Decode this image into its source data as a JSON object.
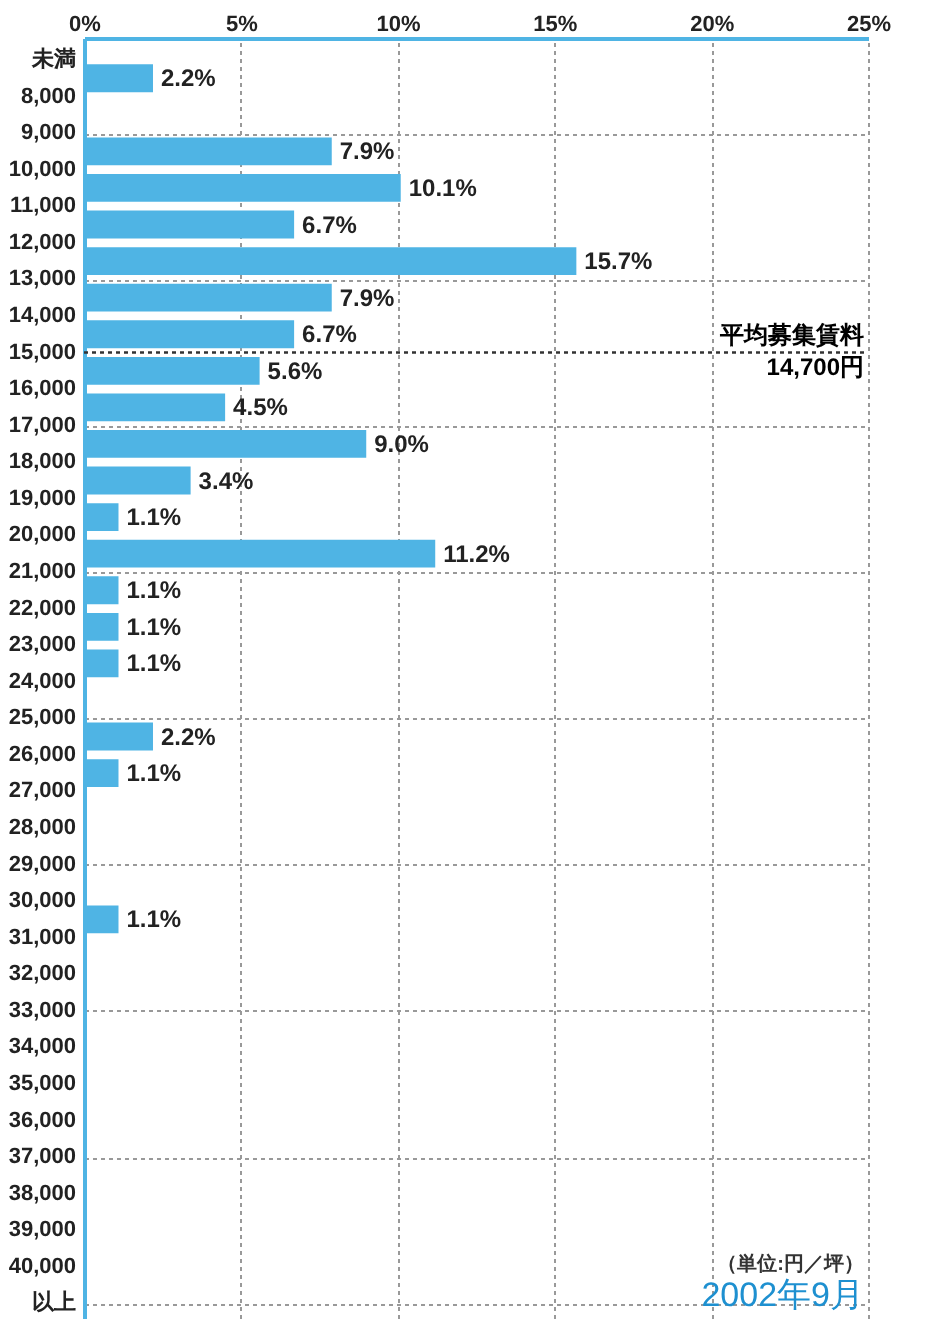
{
  "chart_data": {
    "type": "bar",
    "orientation": "horizontal",
    "categories": [
      "未満",
      "8,000",
      "9,000",
      "10,000",
      "11,000",
      "12,000",
      "13,000",
      "14,000",
      "15,000",
      "16,000",
      "17,000",
      "18,000",
      "19,000",
      "20,000",
      "21,000",
      "22,000",
      "23,000",
      "24,000",
      "25,000",
      "26,000",
      "27,000",
      "28,000",
      "29,000",
      "30,000",
      "31,000",
      "32,000",
      "33,000",
      "34,000",
      "35,000",
      "36,000",
      "37,000",
      "38,000",
      "39,000",
      "40,000",
      "以上"
    ],
    "values": [
      2.2,
      null,
      7.9,
      10.1,
      6.7,
      15.7,
      7.9,
      6.7,
      5.6,
      4.5,
      9.0,
      3.4,
      1.1,
      11.2,
      1.1,
      1.1,
      1.1,
      null,
      2.2,
      1.1,
      null,
      null,
      null,
      1.1,
      null,
      null,
      null,
      null,
      null,
      null,
      null,
      null,
      null,
      null,
      null
    ],
    "value_labels": [
      "2.2%",
      null,
      "7.9%",
      "10.1%",
      "6.7%",
      "15.7%",
      "7.9%",
      "6.7%",
      "5.6%",
      "4.5%",
      "9.0%",
      "3.4%",
      "1.1%",
      "11.2%",
      "1.1%",
      "1.1%",
      "1.1%",
      null,
      "2.2%",
      "1.1%",
      null,
      null,
      null,
      "1.1%",
      null,
      null,
      null,
      null,
      null,
      null,
      null,
      null,
      null,
      null,
      null
    ],
    "color": "#4fb4e4",
    "xlim": [
      0,
      25
    ],
    "xticks": [
      {
        "value": 0,
        "label": "0%"
      },
      {
        "value": 5,
        "label": "5%"
      },
      {
        "value": 10,
        "label": "10%"
      },
      {
        "value": 15,
        "label": "15%"
      },
      {
        "value": 20,
        "label": "20%"
      },
      {
        "value": 25,
        "label": "25%"
      }
    ],
    "grid": true,
    "ref_lines": [
      {
        "axis": "y",
        "value": "15,000",
        "label": "平均募集賃料 14,700円",
        "line_style": "dotted",
        "color": "#333333"
      }
    ],
    "annotations": [
      "（単位:円／坪）",
      "2002年9月"
    ]
  }
}
